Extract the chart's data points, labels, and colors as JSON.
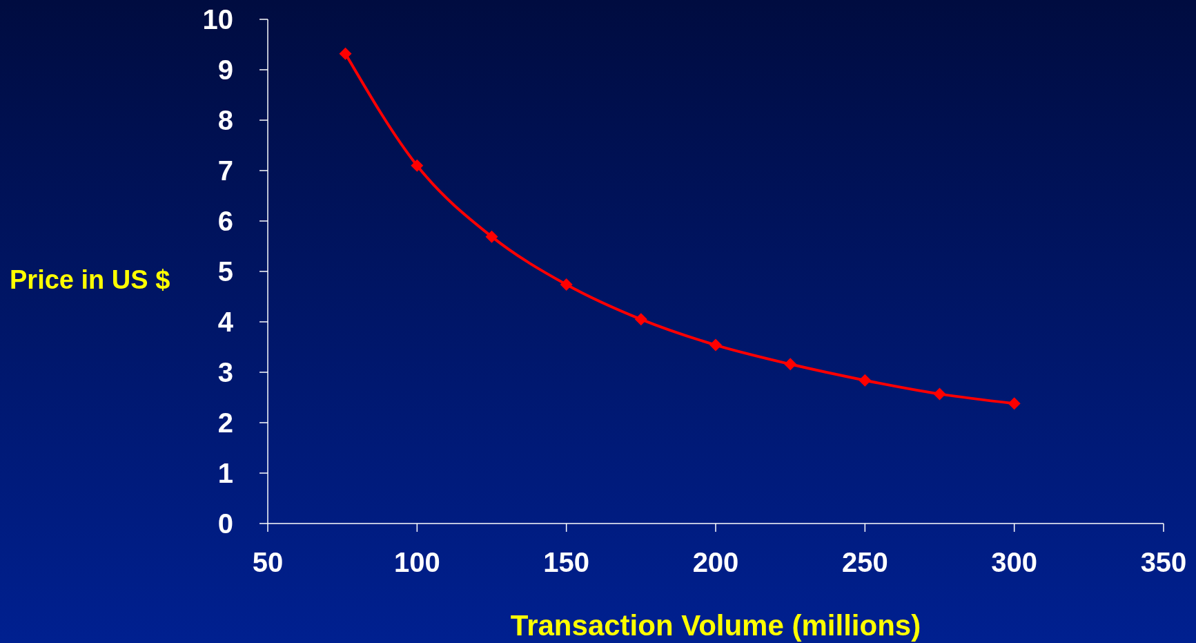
{
  "chart_data": {
    "type": "line",
    "xlabel": "Transaction Volume (millions)",
    "ylabel": "Price in US $",
    "x": [
      76,
      100,
      125,
      150,
      175,
      200,
      225,
      250,
      275,
      300
    ],
    "series": [
      {
        "color": "#ff0000",
        "values": [
          9.32,
          7.1,
          5.69,
          4.74,
          4.05,
          3.54,
          3.16,
          2.84,
          2.57,
          2.38
        ]
      }
    ],
    "xlim": [
      50,
      350
    ],
    "xticks": [
      50,
      100,
      150,
      200,
      250,
      300,
      350
    ],
    "ylim": [
      0,
      10
    ],
    "yticks": [
      0,
      1,
      2,
      3,
      4,
      5,
      6,
      7,
      8,
      9,
      10
    ],
    "grid": false,
    "marker": "diamond",
    "line_style": "solid"
  }
}
